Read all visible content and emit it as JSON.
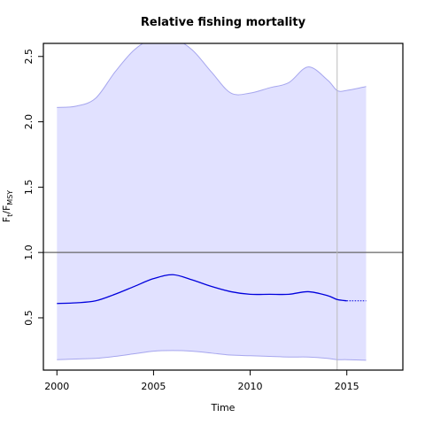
{
  "chart_data": {
    "type": "line",
    "title": "Relative fishing mortality",
    "xlabel": "Time",
    "ylabel": {
      "main": "F",
      "sub1": "t",
      "sep": "/F",
      "sub2": "MSY"
    },
    "xlim": [
      1999.3,
      2017.9
    ],
    "ylim": [
      0.1,
      2.6
    ],
    "x_ticks": [
      2000,
      2005,
      2010,
      2015
    ],
    "y_ticks": [
      0.5,
      1.0,
      1.5,
      2.0,
      2.5
    ],
    "x_tick_labels": [
      "2000",
      "2005",
      "2010",
      "2015"
    ],
    "y_tick_labels": [
      "0.5",
      "1.0",
      "1.5",
      "2.0",
      "2.5"
    ],
    "reference_line_y": 1.0,
    "vertical_line_x": 2014.5,
    "grid": false,
    "colors": {
      "estimate": "#0000dd",
      "band_fill": "#e1e1ff",
      "band_edge": "#a6a6ee",
      "reference": "#666666",
      "vertical": "#bbbbbb"
    },
    "series": [
      {
        "role": "estimate",
        "x": [
          2000,
          2001,
          2002,
          2003,
          2004,
          2005,
          2006,
          2007,
          2008,
          2009,
          2010,
          2011,
          2012,
          2013,
          2014,
          2014.5,
          2015
        ],
        "values": [
          0.61,
          0.615,
          0.63,
          0.68,
          0.74,
          0.8,
          0.83,
          0.79,
          0.74,
          0.7,
          0.68,
          0.68,
          0.68,
          0.7,
          0.67,
          0.64,
          0.63
        ]
      },
      {
        "role": "forecast",
        "x": [
          2015,
          2016
        ],
        "values": [
          0.63,
          0.63
        ]
      },
      {
        "role": "upper_bound",
        "x": [
          2000,
          2001,
          2002,
          2003,
          2004,
          2005,
          2006,
          2007,
          2008,
          2009,
          2010,
          2011,
          2012,
          2013,
          2014,
          2014.5,
          2015,
          2016
        ],
        "values": [
          2.11,
          2.12,
          2.18,
          2.38,
          2.55,
          2.64,
          2.64,
          2.55,
          2.38,
          2.22,
          2.22,
          2.26,
          2.3,
          2.42,
          2.32,
          2.24,
          2.24,
          2.27
        ]
      },
      {
        "role": "lower_bound",
        "x": [
          2000,
          2001,
          2002,
          2003,
          2004,
          2005,
          2006,
          2007,
          2008,
          2009,
          2010,
          2011,
          2012,
          2013,
          2014,
          2014.5,
          2015,
          2016
        ],
        "values": [
          0.18,
          0.185,
          0.19,
          0.205,
          0.225,
          0.245,
          0.25,
          0.245,
          0.23,
          0.215,
          0.21,
          0.205,
          0.2,
          0.2,
          0.19,
          0.18,
          0.18,
          0.175
        ]
      }
    ]
  }
}
